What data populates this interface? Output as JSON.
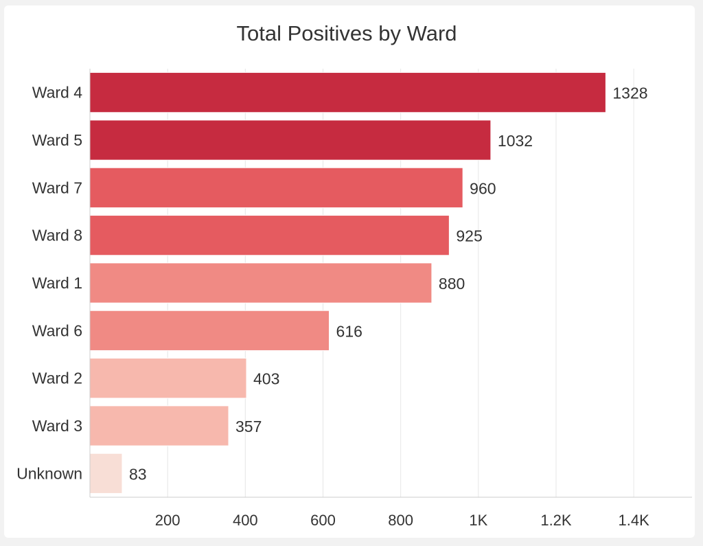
{
  "chart_data": {
    "type": "bar",
    "orientation": "horizontal",
    "title": "Total Positives by Ward",
    "xlabel": "",
    "ylabel": "",
    "categories": [
      "Ward 4",
      "Ward 5",
      "Ward 7",
      "Ward 8",
      "Ward 1",
      "Ward 6",
      "Ward 2",
      "Ward 3",
      "Unknown"
    ],
    "values": [
      1328,
      1032,
      960,
      925,
      880,
      616,
      403,
      357,
      83
    ],
    "data_labels": [
      "1328",
      "1032",
      "960",
      "925",
      "880",
      "616",
      "403",
      "357",
      "83"
    ],
    "bar_colors": [
      "#c62b40",
      "#c62b40",
      "#e55b60",
      "#e55b60",
      "#f08a84",
      "#f08a84",
      "#f7b8ad",
      "#f7b8ad",
      "#f8ded6"
    ],
    "xlim": [
      0,
      1550
    ],
    "x_ticks": [
      200,
      400,
      600,
      800,
      1000,
      1200,
      1400
    ],
    "x_tick_labels": [
      "200",
      "400",
      "600",
      "800",
      "1K",
      "1.2K",
      "1.4K"
    ],
    "grid": true,
    "gridline_color": "#e6e6e6",
    "axis_color": "#cccccc",
    "legend": "none"
  }
}
